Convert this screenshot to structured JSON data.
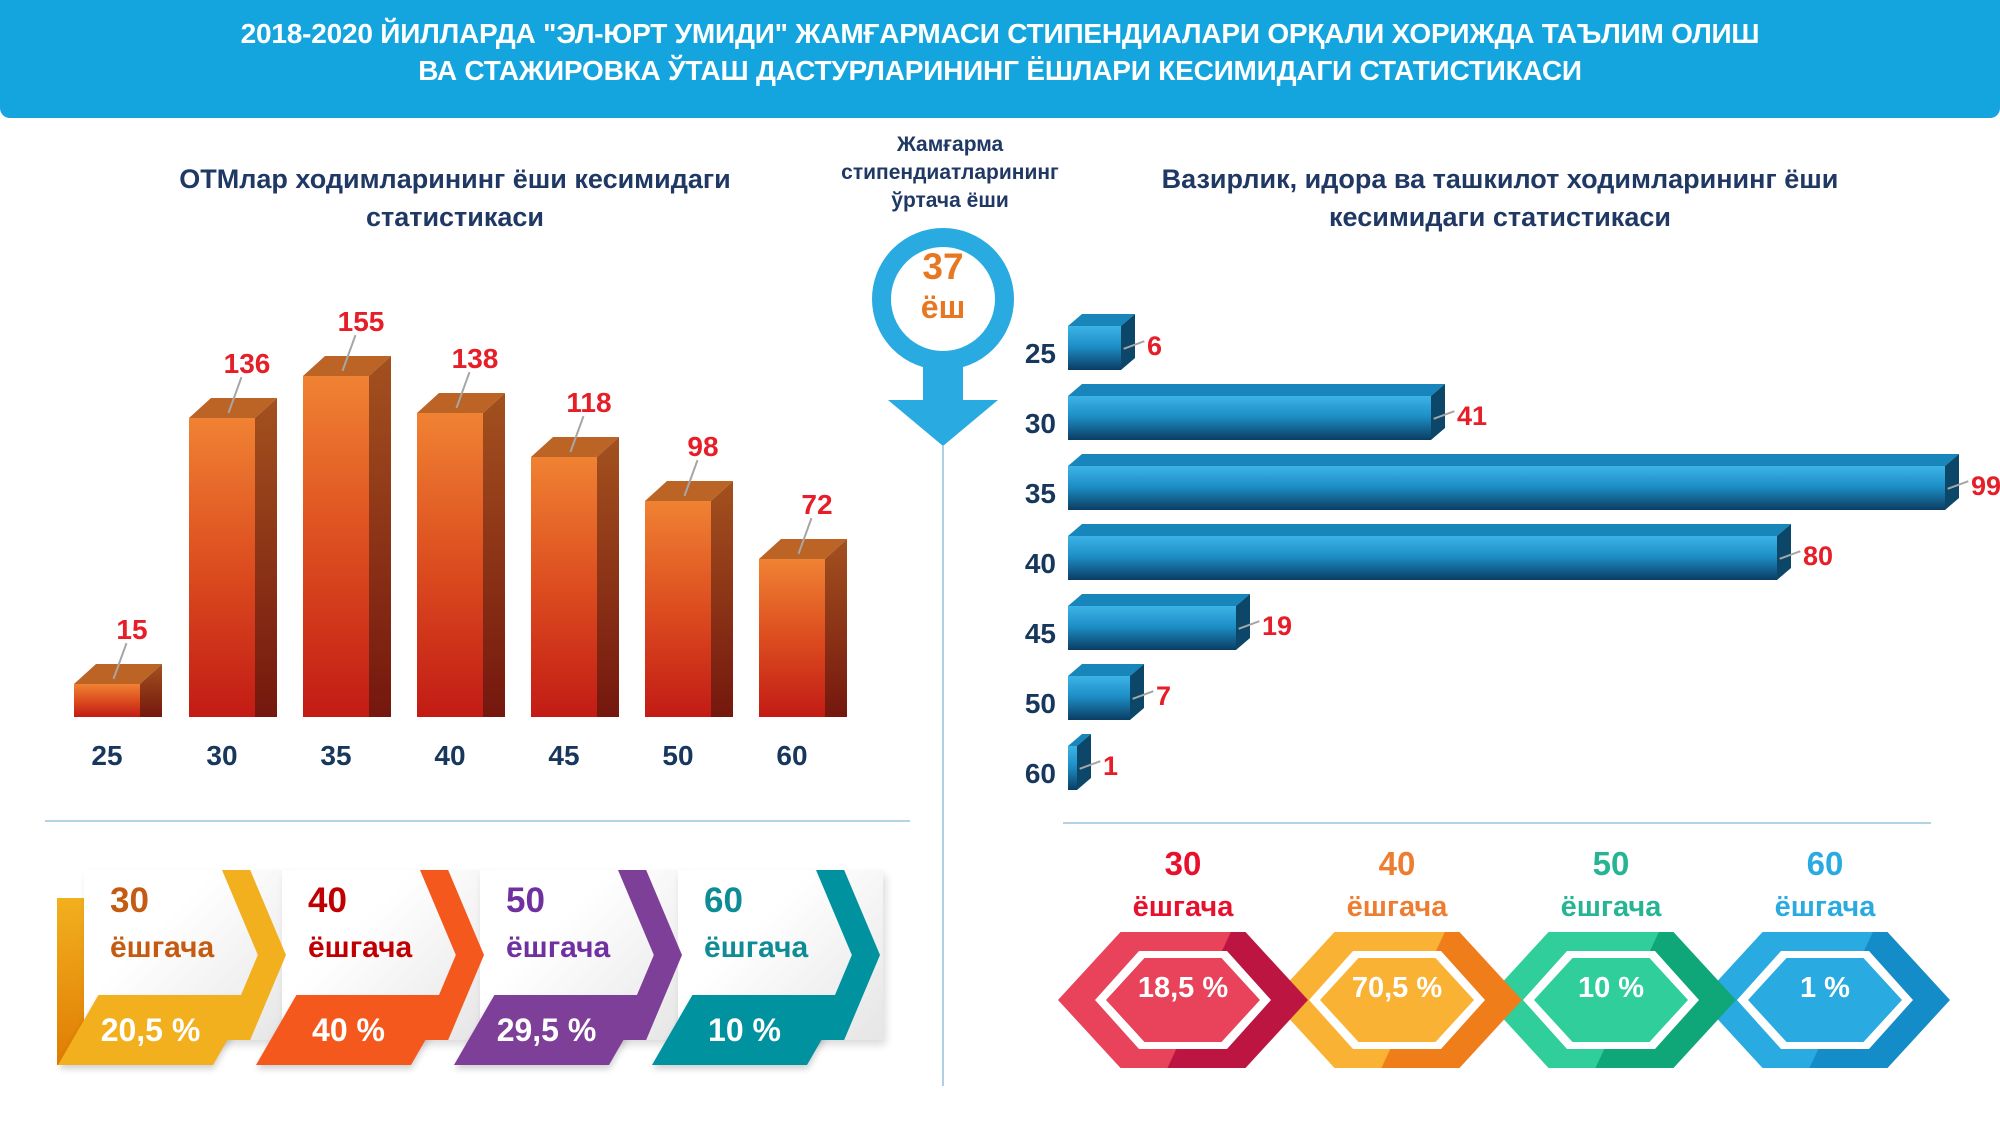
{
  "header": {
    "line1": "2018-2020 ЙИЛЛАРДА \"ЭЛ-ЮРТ УМИДИ\" ЖАМҒАРМАСИ СТИПЕНДИАЛАРИ ОРҚАЛИ ХОРИЖДА ТАЪЛИМ ОЛИШ",
    "line2": "ВА СТАЖИРОВКА ЎТАШ ДАСТУРЛАРИНИНГ ЁШЛАРИ КЕСИМИДАГИ СТАТИСТИКАСИ"
  },
  "left_chart": {
    "title_line1": "ОТМлар ходимларининг ёши кесимидаги",
    "title_line2": "статистикаси"
  },
  "right_chart": {
    "title_line1": "Вазирлик, идора ва ташкилот ходимларининг ёши",
    "title_line2": "кесимидаги статистикаси"
  },
  "center": {
    "line1": "Жамғарма",
    "line2": "стипендиатларининг",
    "line3": "ўртача ёши",
    "value": "37",
    "unit": "ёш"
  },
  "left_arrows": [
    {
      "age": "30",
      "suffix": "ёшгача",
      "percent": "20,5 %",
      "color": "#F2B01E",
      "color_dark": "#E07C04",
      "text_color": "#C55A11"
    },
    {
      "age": "40",
      "suffix": "ёшгача",
      "percent": "40 %",
      "color": "#F4581C",
      "color_dark": "#D63A10",
      "text_color": "#C00000"
    },
    {
      "age": "50",
      "suffix": "ёшгача",
      "percent": "29,5 %",
      "color": "#7D3F98",
      "color_dark": "#5E2A78",
      "text_color": "#7030A0"
    },
    {
      "age": "60",
      "suffix": "ёшгача",
      "percent": "10 %",
      "color": "#00929F",
      "color_dark": "#00737E",
      "text_color": "#0E8C96"
    }
  ],
  "right_hexagons": [
    {
      "age": "30",
      "suffix": "ёшгача",
      "percent": "18,5 %",
      "color": "#E8435A",
      "color_dark": "#BC1541",
      "text_color": "#E8112D"
    },
    {
      "age": "40",
      "suffix": "ёшгача",
      "percent": "70,5 %",
      "color": "#F9B233",
      "color_dark": "#EF7D1A",
      "text_color": "#ED7D31"
    },
    {
      "age": "50",
      "suffix": "ёшгача",
      "percent": "10 %",
      "color": "#30CE9B",
      "color_dark": "#0FA678",
      "text_color": "#26B592"
    },
    {
      "age": "60",
      "suffix": "ёшгача",
      "percent": "1 %",
      "color": "#29ABE2",
      "color_dark": "#148CC8",
      "text_color": "#29ABE2"
    }
  ],
  "palette": {
    "banner_bg": "#14A5DE",
    "title_navy": "#1F3864",
    "value_red": "#E61E28",
    "leader_gray": "#A6A6A6",
    "divider_blue": "#AFCFE3",
    "balloon_blue": "#29ABE2",
    "balloon_number_orange": "#E87722",
    "left_bar_front_top": "#F08233",
    "left_bar_front_mid": "#DC4D1F",
    "left_bar_front_bottom": "#C21B15",
    "left_bar_top_face": "#BC6426",
    "left_bar_side_top": "#A3511F",
    "left_bar_side_bottom": "#75170E",
    "right_bar_front_top": "#3CB3E6",
    "right_bar_front_mid": "#1E90C8",
    "right_bar_front_bottom": "#0A3D63",
    "right_bar_top_face": "#1886BB",
    "right_bar_side": "#0C4668"
  },
  "chart_data": [
    {
      "type": "bar",
      "orientation": "vertical",
      "title": "ОТМлар ходимларининг ёши кесимидаги статистикаси",
      "categories": [
        "25",
        "30",
        "35",
        "40",
        "45",
        "50",
        "60"
      ],
      "values": [
        15,
        136,
        155,
        138,
        118,
        98,
        72
      ],
      "value_label_color": "#E61E28",
      "axis": "hidden",
      "grid": false,
      "summary": [
        {
          "label": "30 ёшгача",
          "percent": "20,5 %"
        },
        {
          "label": "40 ёшгача",
          "percent": "40 %"
        },
        {
          "label": "50 ёшгача",
          "percent": "29,5 %"
        },
        {
          "label": "60 ёшгача",
          "percent": "10 %"
        }
      ]
    },
    {
      "type": "bar",
      "orientation": "horizontal",
      "title": "Вазирлик, идора ва ташкилот ходимларининг ёши кесимидаги статистикаси",
      "categories": [
        "25",
        "30",
        "35",
        "40",
        "45",
        "50",
        "60"
      ],
      "values": [
        6,
        41,
        99,
        80,
        19,
        7,
        1
      ],
      "value_label_color": "#E61E28",
      "axis": "hidden",
      "grid": false,
      "summary": [
        {
          "label": "30 ёшгача",
          "percent": "18,5 %"
        },
        {
          "label": "40 ёшгача",
          "percent": "70,5 %"
        },
        {
          "label": "50 ёшгача",
          "percent": "10 %"
        },
        {
          "label": "60 ёшгача",
          "percent": "1 %"
        }
      ]
    }
  ],
  "average_badge": {
    "label": "Жамғарма стипендиатларининг ўртача ёши",
    "value": "37",
    "unit": "ёш"
  }
}
